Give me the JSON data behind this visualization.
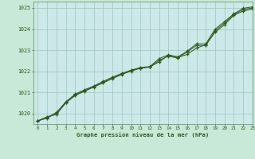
{
  "title": "Graphe pression niveau de la mer (hPa)",
  "background_color": "#c8e8d8",
  "plot_bg_color": "#cce8e8",
  "grid_color": "#9ec8b8",
  "line_color": "#2d5a1b",
  "marker_color": "#2d5a1b",
  "xlim": [
    -0.5,
    23
  ],
  "ylim": [
    1019.5,
    1025.3
  ],
  "yticks": [
    1020,
    1021,
    1022,
    1023,
    1024,
    1025
  ],
  "xticks": [
    0,
    1,
    2,
    3,
    4,
    5,
    6,
    7,
    8,
    9,
    10,
    11,
    12,
    13,
    14,
    15,
    16,
    17,
    18,
    19,
    20,
    21,
    22,
    23
  ],
  "series1": [
    1019.65,
    1019.85,
    1019.95,
    1020.5,
    1020.85,
    1021.05,
    1021.25,
    1021.45,
    1021.65,
    1021.85,
    1022.05,
    1022.15,
    1022.2,
    1022.45,
    1022.75,
    1022.65,
    1022.8,
    1023.1,
    1023.25,
    1023.85,
    1024.2,
    1024.65,
    1024.85,
    1024.95
  ],
  "series2": [
    1019.65,
    1019.8,
    1020.05,
    1020.55,
    1020.92,
    1021.12,
    1021.3,
    1021.52,
    1021.72,
    1021.9,
    1022.05,
    1022.18,
    1022.22,
    1022.6,
    1022.78,
    1022.68,
    1022.95,
    1023.3,
    1023.3,
    1024.0,
    1024.35,
    1024.72,
    1024.98,
    1025.05
  ],
  "series3": [
    1019.65,
    1019.78,
    1020.02,
    1020.52,
    1020.88,
    1021.08,
    1021.28,
    1021.48,
    1021.68,
    1021.86,
    1022.0,
    1022.15,
    1022.2,
    1022.52,
    1022.72,
    1022.62,
    1022.92,
    1023.22,
    1023.22,
    1023.92,
    1024.28,
    1024.68,
    1024.92,
    1025.0
  ]
}
